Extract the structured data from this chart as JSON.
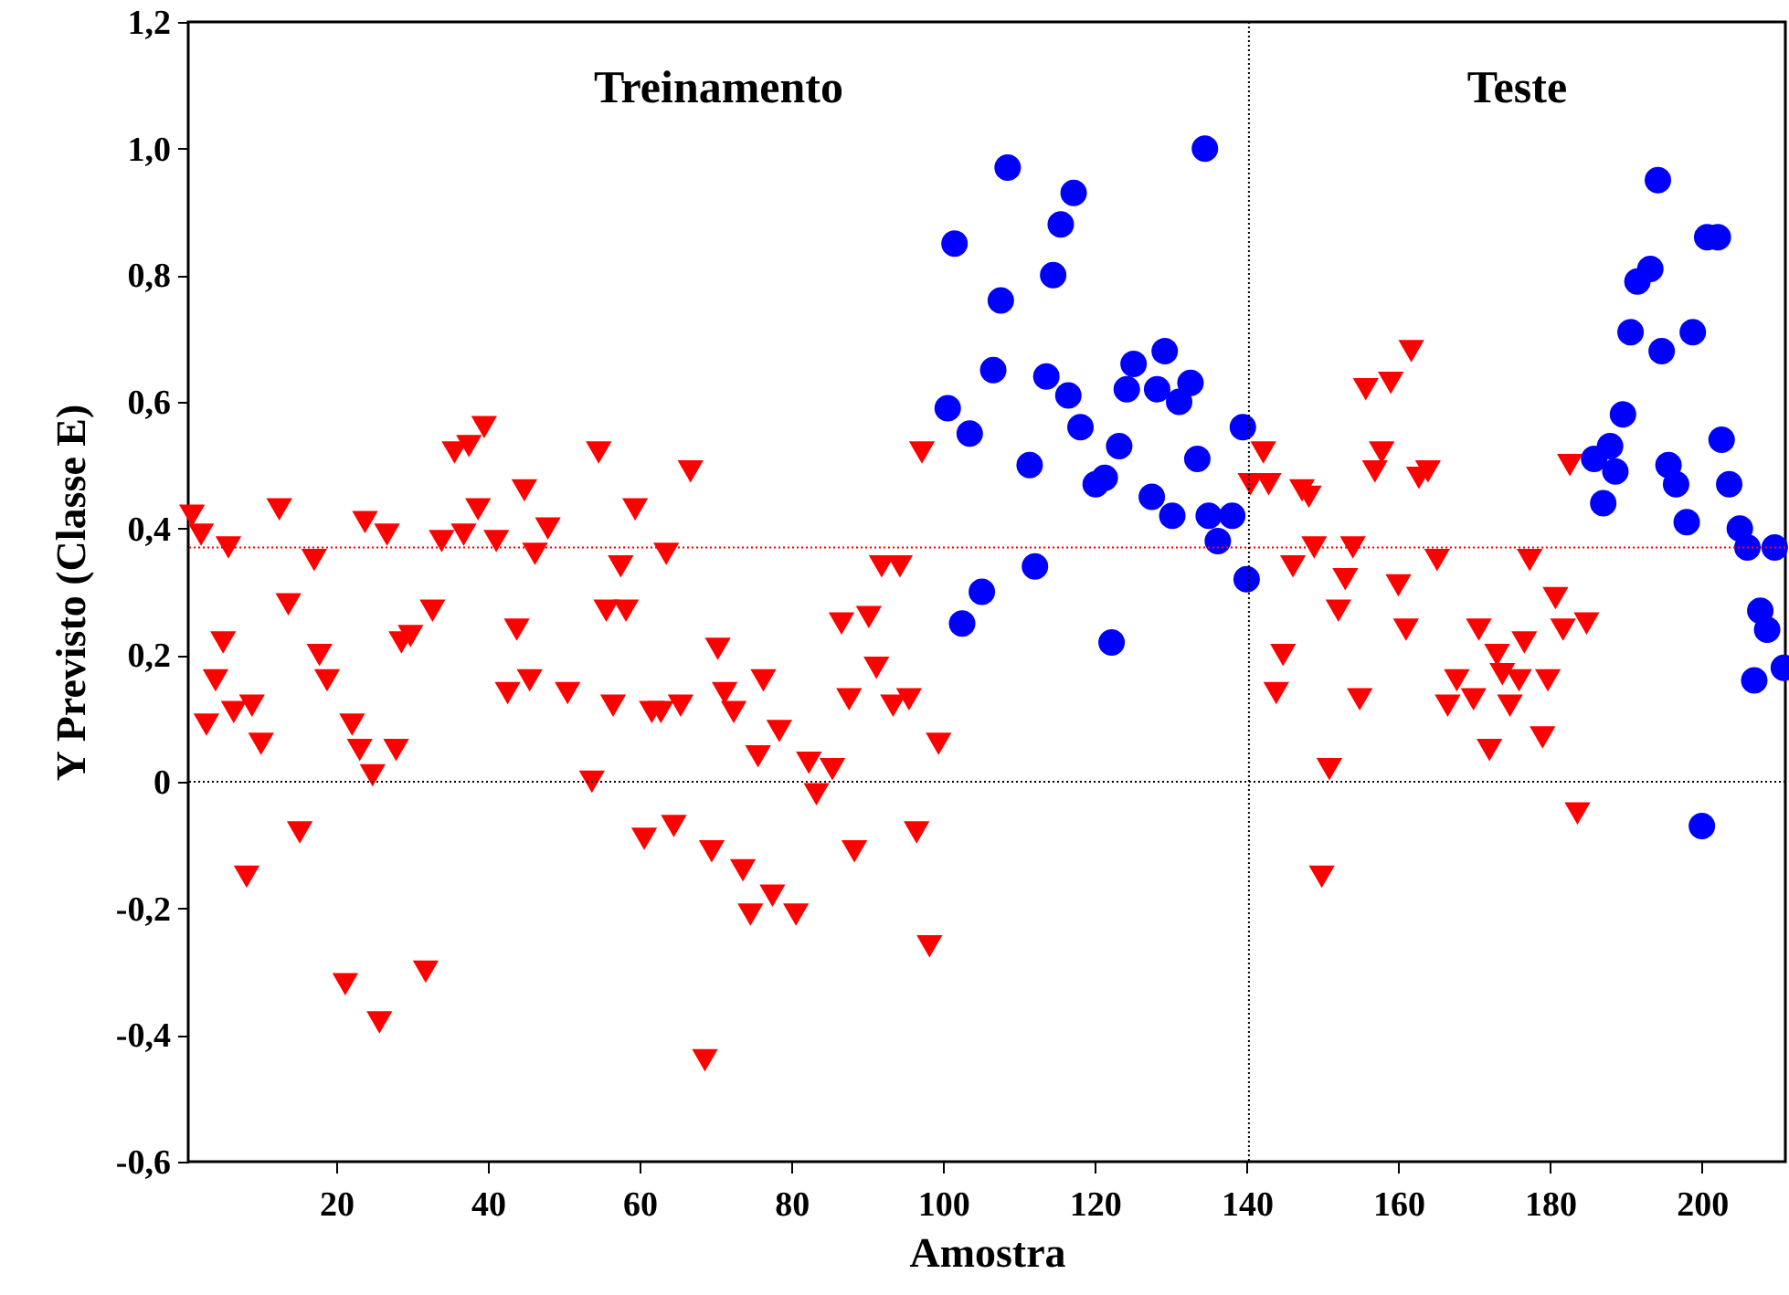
{
  "chart_data": {
    "type": "scatter",
    "xlabel": "Amostra",
    "ylabel": "Y Previsto (Classe E)",
    "xlim": [
      0.5,
      211
    ],
    "xticks": [
      20,
      40,
      60,
      80,
      100,
      120,
      140,
      160,
      180,
      200
    ],
    "ylim": [
      -0.6,
      1.2
    ],
    "yticks": [
      {
        "value": -0.6,
        "label": "-0,6"
      },
      {
        "value": -0.4,
        "label": "-0,4"
      },
      {
        "value": -0.2,
        "label": "-0,2"
      },
      {
        "value": 0,
        "label": "0"
      },
      {
        "value": 0.2,
        "label": "0,2"
      },
      {
        "value": 0.4,
        "label": "0,4"
      },
      {
        "value": 0.6,
        "label": "0,6"
      },
      {
        "value": 0.8,
        "label": "0,8"
      },
      {
        "value": 1.0,
        "label": "1,0"
      },
      {
        "value": 1.2,
        "label": "1,2"
      }
    ],
    "grid": false,
    "annotations": [
      "Treinamento",
      "Teste"
    ],
    "ref_lines": [
      {
        "axis": "y",
        "value": 0.37,
        "color": "#ff0000",
        "line_style": "dotted"
      },
      {
        "axis": "y",
        "value": 0,
        "color": "#000000",
        "line_style": "dotted"
      },
      {
        "axis": "x",
        "value": 140.3,
        "color": "#000000",
        "line_style": "dotted"
      }
    ],
    "series": [
      {
        "color": "#ff0000",
        "marker": "triangle-down",
        "x": [
          1.0,
          2.2,
          5.8,
          12.5,
          17.1,
          13.7,
          5.1,
          4.1,
          6.5,
          8.9,
          2.9,
          10.1,
          17.8,
          18.8,
          15.2,
          8.2,
          23.8,
          26.7,
          33.9,
          36.8,
          38.7,
          41.1,
          44.8,
          47.9,
          46.2,
          35.6,
          37.5,
          39.5,
          32.7,
          29.8,
          28.6,
          43.8,
          45.5,
          42.6,
          50.5,
          22.1,
          23.1,
          24.8,
          27.9,
          21.2,
          31.8,
          25.7,
          53.7,
          54.6,
          66.7,
          59.4,
          57.5,
          63.5,
          55.6,
          58.2,
          70.3,
          76.3,
          56.5,
          61.6,
          62.8,
          65.4,
          71.2,
          72.4,
          78.4,
          75.6,
          82.3,
          85.4,
          83.3,
          64.5,
          60.6,
          69.5,
          73.6,
          77.5,
          74.6,
          80.6,
          68.6,
          97.2,
          91.9,
          94.3,
          86.6,
          90.2,
          91.2,
          87.6,
          93.4,
          95.5,
          99.4,
          88.3,
          96.5,
          98.2,
          161.7,
          155.7,
          159.0,
          142.2,
          140.5,
          142.9,
          147.3,
          148.2,
          157.8,
          156.9,
          163.9,
          162.7,
          182.6,
          148.9,
          146.1,
          154.0,
          153.0,
          160.0,
          165.1,
          152.1,
          161.0,
          177.3,
          180.7,
          184.8,
          181.7,
          170.6,
          176.6,
          173.0,
          173.7,
          175.9,
          179.7,
          144.8,
          143.9,
          154.9,
          167.7,
          166.5,
          169.9,
          174.7,
          172.0,
          179.0,
          150.9,
          183.6,
          149.9
        ],
        "values": [
          0.42,
          0.39,
          0.37,
          0.43,
          0.35,
          0.28,
          0.22,
          0.16,
          0.11,
          0.12,
          0.09,
          0.06,
          0.2,
          0.16,
          -0.08,
          -0.15,
          0.41,
          0.39,
          0.38,
          0.39,
          0.43,
          0.38,
          0.46,
          0.4,
          0.36,
          0.52,
          0.53,
          0.56,
          0.27,
          0.23,
          0.22,
          0.24,
          0.16,
          0.14,
          0.14,
          0.09,
          0.05,
          0.01,
          0.05,
          -0.32,
          -0.3,
          -0.38,
          0.0,
          0.52,
          0.49,
          0.43,
          0.34,
          0.36,
          0.27,
          0.27,
          0.21,
          0.16,
          0.12,
          0.11,
          0.11,
          0.12,
          0.14,
          0.11,
          0.08,
          0.04,
          0.03,
          0.02,
          -0.02,
          -0.07,
          -0.09,
          -0.11,
          -0.14,
          -0.18,
          -0.21,
          -0.21,
          -0.44,
          0.52,
          0.34,
          0.34,
          0.25,
          0.26,
          0.18,
          0.13,
          0.12,
          0.13,
          0.06,
          -0.11,
          -0.08,
          -0.26,
          0.68,
          0.62,
          0.63,
          0.52,
          0.47,
          0.47,
          0.46,
          0.45,
          0.52,
          0.49,
          0.49,
          0.48,
          0.5,
          0.37,
          0.34,
          0.37,
          0.32,
          0.31,
          0.35,
          0.27,
          0.24,
          0.35,
          0.29,
          0.25,
          0.24,
          0.24,
          0.22,
          0.2,
          0.17,
          0.16,
          0.16,
          0.2,
          0.14,
          0.13,
          0.16,
          0.12,
          0.13,
          0.12,
          0.05,
          0.07,
          0.02,
          -0.05,
          -0.15
        ]
      },
      {
        "color": "#0000ff",
        "marker": "circle",
        "x": [
          108.5,
          117.2,
          115.5,
          101.5,
          114.5,
          107.6,
          134.5,
          106.6,
          100.6,
          103.5,
          113.6,
          116.5,
          118.1,
          111.4,
          121.3,
          120.1,
          123.2,
          125.1,
          124.2,
          129.2,
          128.2,
          132.6,
          131.1,
          133.5,
          127.5,
          130.2,
          135.0,
          138.1,
          136.2,
          139.5,
          112.1,
          105.1,
          102.5,
          122.2,
          140.0,
          191.5,
          193.2,
          194.2,
          200.7,
          202.1,
          190.6,
          194.7,
          198.8,
          189.6,
          185.8,
          187.9,
          188.6,
          187.0,
          195.6,
          196.6,
          198.0,
          202.6,
          203.6,
          205.0,
          206.0,
          209.6,
          207.7,
          208.6,
          206.9,
          210.8,
          200.0
        ],
        "values": [
          0.97,
          0.93,
          0.88,
          0.85,
          0.8,
          0.76,
          1.0,
          0.65,
          0.59,
          0.55,
          0.64,
          0.61,
          0.56,
          0.5,
          0.48,
          0.47,
          0.53,
          0.66,
          0.62,
          0.68,
          0.62,
          0.63,
          0.6,
          0.51,
          0.45,
          0.42,
          0.42,
          0.42,
          0.38,
          0.56,
          0.34,
          0.3,
          0.25,
          0.22,
          0.32,
          0.79,
          0.81,
          0.95,
          0.86,
          0.86,
          0.71,
          0.68,
          0.71,
          0.58,
          0.51,
          0.53,
          0.49,
          0.44,
          0.5,
          0.47,
          0.41,
          0.54,
          0.47,
          0.4,
          0.37,
          0.37,
          0.27,
          0.24,
          0.16,
          0.18,
          -0.07
        ]
      }
    ]
  }
}
